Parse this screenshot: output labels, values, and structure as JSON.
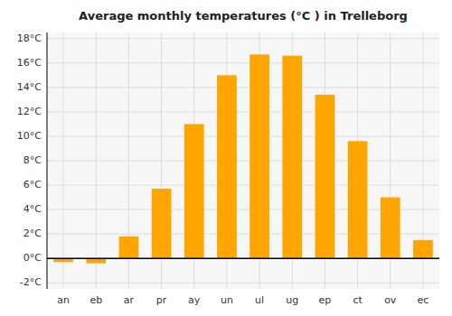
{
  "chart_data": {
    "type": "bar",
    "title": "Average monthly temperatures (°C ) in Trelleborg",
    "categories": [
      "an",
      "eb",
      "ar",
      "pr",
      "ay",
      "un",
      "ul",
      "ug",
      "ep",
      "ct",
      "ov",
      "ec"
    ],
    "values": [
      -0.3,
      -0.4,
      1.8,
      5.7,
      11.0,
      15.0,
      16.7,
      16.6,
      13.4,
      9.6,
      5.0,
      1.5
    ],
    "color": "#FFA500",
    "ylim": [
      -2.5,
      18.5
    ],
    "yticks": [
      {
        "value": -2,
        "label": "-2°C"
      },
      {
        "value": 0,
        "label": "0°C"
      },
      {
        "value": 2,
        "label": "2°C"
      },
      {
        "value": 4,
        "label": "4°C"
      },
      {
        "value": 6,
        "label": "6°C"
      },
      {
        "value": 8,
        "label": "8°C"
      },
      {
        "value": 10,
        "label": "10°C"
      },
      {
        "value": 12,
        "label": "12°C"
      },
      {
        "value": 14,
        "label": "14°C"
      },
      {
        "value": 16,
        "label": "16°C"
      },
      {
        "value": 18,
        "label": "18°C"
      }
    ],
    "grid": true
  }
}
